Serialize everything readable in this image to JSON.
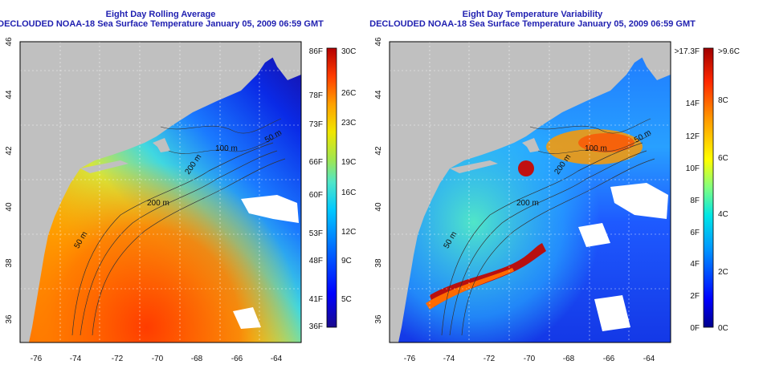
{
  "panels": [
    {
      "title": "Eight Day Rolling Average",
      "subtitle": "DECLOUDED NOAA-18 Sea Surface Temperature January 05, 2009 06:59 GMT",
      "x_ticks": [
        "-76",
        "-74",
        "-72",
        "-70",
        "-68",
        "-66",
        "-64"
      ],
      "y_ticks": [
        "36",
        "38",
        "40",
        "42",
        "44",
        "46"
      ],
      "contour_labels": [
        "200 m",
        "50 m",
        "200 m",
        "100 m",
        "50 m"
      ],
      "colorbar": {
        "left_labels": [
          "86F",
          "78F",
          "73F",
          "66F",
          "60F",
          "53F",
          "48F",
          "41F",
          "36F"
        ],
        "right_labels": [
          "30C",
          "26C",
          "23C",
          "19C",
          "16C",
          "12C",
          "9C",
          "5C"
        ]
      }
    },
    {
      "title": "Eight Day Temperature Variability",
      "subtitle": "DECLOUDED NOAA-18 Sea Surface Temperature January 05, 2009 06:59 GMT",
      "x_ticks": [
        "-76",
        "-74",
        "-72",
        "-70",
        "-68",
        "-66",
        "-64"
      ],
      "y_ticks": [
        "36",
        "38",
        "40",
        "42",
        "44",
        "46"
      ],
      "contour_labels": [
        "200 m",
        "50 m",
        "200 m",
        "100 m",
        "50 m"
      ],
      "colorbar": {
        "left_labels": [
          ">17.3F",
          "14F",
          "12F",
          "10F",
          "8F",
          "6F",
          "4F",
          "2F",
          "0F"
        ],
        "right_labels": [
          ">9.6C",
          "8C",
          "6C",
          "4C",
          "2C",
          "0C"
        ]
      }
    }
  ],
  "colors": {
    "land": "#c0c0c0",
    "title": "#1f1fb0",
    "sst_scale": [
      "#1a0a8c",
      "#0000ff",
      "#0066ff",
      "#00b4ff",
      "#30e0e0",
      "#7fe27f",
      "#e6e600",
      "#ffa500",
      "#ff3c00",
      "#b40000"
    ],
    "variability_scale": [
      "#00008c",
      "#0000ff",
      "#0096ff",
      "#00e6e6",
      "#80ff80",
      "#ffff00",
      "#ff9600",
      "#ff2800",
      "#a00000"
    ]
  }
}
